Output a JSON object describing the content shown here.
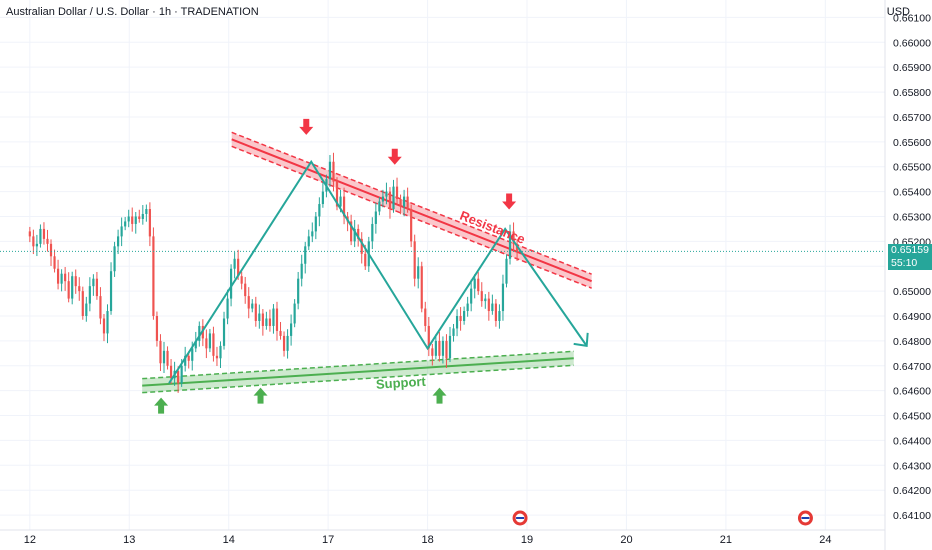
{
  "header": {
    "title": "Australian Dollar / U.S. Dollar · 1h · TRADENATION",
    "currency": "USD"
  },
  "price_tag": {
    "price": "0.65159",
    "countdown": "55:10"
  },
  "colors": {
    "up": "#26a69a",
    "down": "#ef5350",
    "resistance": "#f23645",
    "support": "#4caf50",
    "pattern_line": "#26a69a"
  },
  "chart_data": {
    "type": "candlestick",
    "symbol": "Australian Dollar / U.S. Dollar",
    "interval": "1h",
    "y_ticks": [
      0.661,
      0.66,
      0.659,
      0.658,
      0.657,
      0.656,
      0.655,
      0.654,
      0.653,
      0.652,
      0.651,
      0.65,
      0.649,
      0.648,
      0.647,
      0.646,
      0.645,
      0.644,
      0.643,
      0.642,
      0.641
    ],
    "y_tick_labels": [
      "0.66100",
      "0.66000",
      "0.65900",
      "0.65800",
      "0.65700",
      "0.65600",
      "0.65500",
      "0.65400",
      "0.65300",
      "0.65200",
      "0.65100",
      "0.65000",
      "0.64900",
      "0.64800",
      "0.64700",
      "0.64600",
      "0.64500",
      "0.64400",
      "0.64300",
      "0.64200",
      "0.64100"
    ],
    "ylim": [
      0.6404,
      0.6617
    ],
    "x_ticks": [
      {
        "label": "12",
        "day": 0
      },
      {
        "label": "13",
        "day": 1
      },
      {
        "label": "14",
        "day": 2
      },
      {
        "label": "17",
        "day": 3
      },
      {
        "label": "18",
        "day": 4
      },
      {
        "label": "19",
        "day": 5
      },
      {
        "label": "20",
        "day": 6
      },
      {
        "label": "21",
        "day": 7
      },
      {
        "label": "24",
        "day": 8
      }
    ],
    "xlim": [
      -0.3,
      8.6
    ],
    "closes": [
      0.6522,
      0.6518,
      0.6519,
      0.6525,
      0.6521,
      0.6519,
      0.6514,
      0.6509,
      0.6503,
      0.6507,
      0.6504,
      0.6497,
      0.6506,
      0.6502,
      0.65,
      0.649,
      0.6495,
      0.6502,
      0.6505,
      0.6498,
      0.6489,
      0.6483,
      0.6492,
      0.6508,
      0.6518,
      0.6522,
      0.6526,
      0.6528,
      0.653,
      0.6527,
      0.653,
      0.6529,
      0.6531,
      0.6533,
      0.6522,
      0.649,
      0.648,
      0.6471,
      0.6476,
      0.647,
      0.6465,
      0.6468,
      0.6463,
      0.647,
      0.6474,
      0.6472,
      0.6477,
      0.648,
      0.6486,
      0.6481,
      0.6477,
      0.6483,
      0.6474,
      0.6473,
      0.6478,
      0.6489,
      0.6497,
      0.6509,
      0.6513,
      0.6506,
      0.6503,
      0.6498,
      0.6493,
      0.6495,
      0.6488,
      0.6491,
      0.6486,
      0.6489,
      0.6486,
      0.6493,
      0.6484,
      0.6482,
      0.6476,
      0.6482,
      0.6487,
      0.6495,
      0.6505,
      0.6511,
      0.6518,
      0.6522,
      0.6524,
      0.653,
      0.6535,
      0.654,
      0.6545,
      0.6552,
      0.6544,
      0.6534,
      0.6538,
      0.653,
      0.6528,
      0.652,
      0.6525,
      0.6521,
      0.6515,
      0.651,
      0.652,
      0.6527,
      0.6532,
      0.6536,
      0.6538,
      0.654,
      0.6533,
      0.6542,
      0.6537,
      0.6534,
      0.6538,
      0.6533,
      0.652,
      0.6505,
      0.651,
      0.6493,
      0.6486,
      0.6477,
      0.6474,
      0.648,
      0.6474,
      0.648,
      0.6473,
      0.6482,
      0.6485,
      0.649,
      0.6488,
      0.6492,
      0.6495,
      0.6501,
      0.6505,
      0.65,
      0.6496,
      0.6497,
      0.6492,
      0.6495,
      0.6488,
      0.6492,
      0.6503,
      0.6513,
      0.6524,
      0.6519,
      0.6516
    ],
    "annotations": {
      "resistance": {
        "label": "Resistance",
        "from": {
          "day": 2.03,
          "price": 0.6561
        },
        "to": {
          "day": 5.65,
          "price": 0.6504
        }
      },
      "support": {
        "label": "Support",
        "from": {
          "day": 1.13,
          "price": 0.6462
        },
        "to": {
          "day": 5.47,
          "price": 0.6473
        }
      },
      "pattern_path": [
        {
          "day": 1.4,
          "price": 0.6463
        },
        {
          "day": 2.83,
          "price": 0.6552
        },
        {
          "day": 4.0,
          "price": 0.6477
        },
        {
          "day": 4.78,
          "price": 0.6525
        },
        {
          "day": 5.6,
          "price": 0.6478
        }
      ],
      "sell_arrows": [
        {
          "day": 2.78,
          "price": 0.6566
        },
        {
          "day": 3.67,
          "price": 0.6554
        },
        {
          "day": 4.82,
          "price": 0.6536
        }
      ],
      "buy_arrows": [
        {
          "day": 1.32,
          "price": 0.6454
        },
        {
          "day": 2.32,
          "price": 0.6458
        },
        {
          "day": 4.12,
          "price": 0.6458
        }
      ],
      "event_icons": [
        {
          "day": 4.93
        },
        {
          "day": 7.8
        }
      ]
    }
  }
}
